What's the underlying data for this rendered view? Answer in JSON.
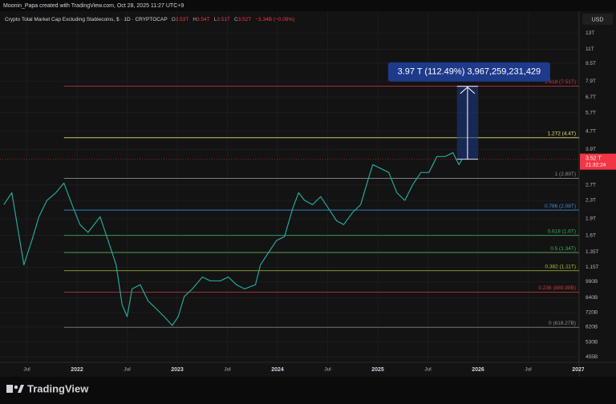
{
  "header": "Moonin_Papa created with TradingView.com, Oct 28, 2025 11:27 UTC+9",
  "currency": "USD",
  "footer": "TradingView",
  "chart_data": {
    "type": "line",
    "title": "Crypto Total Market Cap Excluding Stablecoins, $ · 1D · CRYPTOCAP",
    "ohlc": [
      {
        "key": "O",
        "value": "3.53T"
      },
      {
        "key": "H",
        "value": "3.54T"
      },
      {
        "key": "L",
        "value": "3.51T"
      },
      {
        "key": "C",
        "value": "3.52T"
      }
    ],
    "change": "−3.34B (−0.09%)",
    "color": "#26a69a",
    "x": [
      2021.27,
      2021.35,
      2021.47,
      2021.55,
      2021.62,
      2021.7,
      2021.79,
      2021.87,
      2021.95,
      2022.03,
      2022.11,
      2022.23,
      2022.31,
      2022.39,
      2022.45,
      2022.5,
      2022.55,
      2022.63,
      2022.71,
      2022.79,
      2022.87,
      2022.95,
      2023.01,
      2023.07,
      2023.15,
      2023.25,
      2023.33,
      2023.43,
      2023.51,
      2023.59,
      2023.67,
      2023.78,
      2023.83,
      2023.91,
      2023.99,
      2024.07,
      2024.15,
      2024.21,
      2024.27,
      2024.35,
      2024.43,
      2024.51,
      2024.59,
      2024.66,
      2024.75,
      2024.83,
      2024.9,
      2024.95,
      2025.03,
      2025.11,
      2025.19,
      2025.27,
      2025.35,
      2025.43,
      2025.51,
      2025.59,
      2025.67,
      2025.75,
      2025.81,
      2025.84
    ],
    "values": [
      2.2,
      2.49,
      1.18,
      1.52,
      1.94,
      2.3,
      2.49,
      2.75,
      2.2,
      1.79,
      1.65,
      1.94,
      1.52,
      1.18,
      0.78,
      0.69,
      0.92,
      0.96,
      0.81,
      0.75,
      0.69,
      0.63,
      0.69,
      0.85,
      0.92,
      1.04,
      1.0,
      1.0,
      1.04,
      0.96,
      0.92,
      0.96,
      1.18,
      1.34,
      1.52,
      1.58,
      2.11,
      2.49,
      2.3,
      2.2,
      2.39,
      2.11,
      1.86,
      1.79,
      2.03,
      2.2,
      2.82,
      3.33,
      3.2,
      3.07,
      2.49,
      2.3,
      2.71,
      3.07,
      3.07,
      3.62,
      3.62,
      3.77,
      3.33,
      3.52
    ],
    "log_y": true,
    "grid": true,
    "ylim": [
      0.43,
      16.3
    ],
    "yticks": [
      {
        "value": 13,
        "label": "13T"
      },
      {
        "value": 11,
        "label": "11T"
      },
      {
        "value": 9.5,
        "label": "9.5T"
      },
      {
        "value": 7.9,
        "label": "7.9T"
      },
      {
        "value": 6.7,
        "label": "6.7T"
      },
      {
        "value": 5.7,
        "label": "5.7T"
      },
      {
        "value": 4.7,
        "label": "4.7T"
      },
      {
        "value": 3.9,
        "label": "3.9T"
      },
      {
        "value": 2.7,
        "label": "2.7T"
      },
      {
        "value": 2.3,
        "label": "2.3T"
      },
      {
        "value": 1.9,
        "label": "1.9T"
      },
      {
        "value": 1.6,
        "label": "1.6T"
      },
      {
        "value": 1.35,
        "label": "1.35T"
      },
      {
        "value": 1.15,
        "label": "1.15T"
      },
      {
        "value": 0.99,
        "label": "990B"
      },
      {
        "value": 0.84,
        "label": "840B"
      },
      {
        "value": 0.72,
        "label": "720B"
      },
      {
        "value": 0.62,
        "label": "620B"
      },
      {
        "value": 0.53,
        "label": "530B"
      },
      {
        "value": 0.455,
        "label": "455B"
      }
    ],
    "xlim": [
      2021.232,
      2027.008
    ],
    "xticks": [
      {
        "value": 2021.5,
        "label": "Jul"
      },
      2022,
      {
        "value": 2022.5,
        "label": "Jul"
      },
      2023,
      {
        "value": 2023.5,
        "label": "Jul"
      },
      2024,
      {
        "value": 2024.5,
        "label": "Jul"
      },
      2025,
      {
        "value": 2025.5,
        "label": "Jul"
      },
      2026,
      {
        "value": 2026.5,
        "label": "Jul"
      },
      2027
    ],
    "fib_levels": [
      {
        "label": "1.618 (7.51T)",
        "value": 7.51,
        "color": "#d0393e"
      },
      {
        "label": "1.272 (4.4T)",
        "value": 4.4,
        "color": "#e6e37a"
      },
      {
        "label": "1 (2.89T)",
        "value": 2.89,
        "color": "#8a8d94"
      },
      {
        "label": "0.786 (2.08T)",
        "value": 2.08,
        "color": "#3c8fd6"
      },
      {
        "label": "0.618 (1.6T)",
        "value": 1.6,
        "color": "#3fa85a"
      },
      {
        "label": "0.5 (1.34T)",
        "value": 1.34,
        "color": "#4caf50"
      },
      {
        "label": "0.382 (1.11T)",
        "value": 1.11,
        "color": "#a5c23a"
      },
      {
        "label": "0.236 (889.98B)",
        "value": 0.8898,
        "color": "#d0393e"
      },
      {
        "label": "0 (618.27B)",
        "value": 0.6183,
        "color": "#8a8d94"
      }
    ],
    "fib_start": 2021.87,
    "measure": {
      "label": "3.97 T (112.49%) 3,967,259,231,429",
      "from": 3.52,
      "to": 7.49,
      "x": [
        2025.79,
        2026.0
      ],
      "color": "#1e3a8a"
    },
    "last_price": {
      "label": "3.52 T",
      "countdown": "21:32:24",
      "value": 3.52,
      "color": "#f23645"
    }
  }
}
